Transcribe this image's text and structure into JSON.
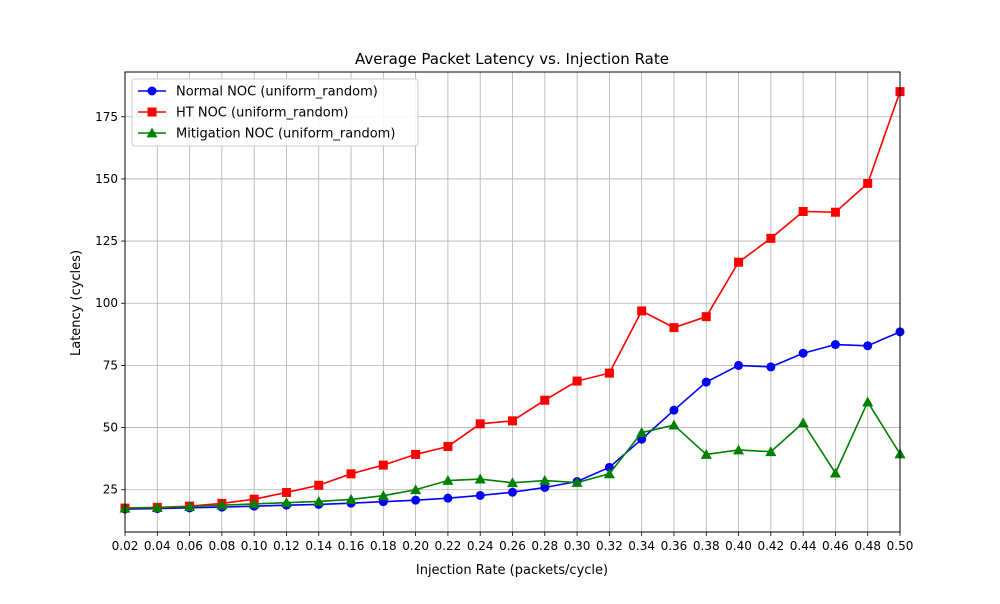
{
  "chart_data": {
    "type": "line",
    "title": "Average Packet Latency vs. Injection Rate",
    "xlabel": "Injection Rate (packets/cycle)",
    "ylabel": "Latency (cycles)",
    "xlim": [
      0.02,
      0.5
    ],
    "ylim": [
      8,
      193
    ],
    "x_ticks": [
      "0.02",
      "0.04",
      "0.06",
      "0.08",
      "0.10",
      "0.12",
      "0.14",
      "0.16",
      "0.18",
      "0.20",
      "0.22",
      "0.24",
      "0.26",
      "0.28",
      "0.30",
      "0.32",
      "0.34",
      "0.36",
      "0.38",
      "0.40",
      "0.42",
      "0.44",
      "0.46",
      "0.48",
      "0.50"
    ],
    "y_ticks": [
      "25",
      "50",
      "75",
      "100",
      "125",
      "150",
      "175"
    ],
    "grid": true,
    "legend_position": "top-left",
    "x": [
      0.02,
      0.04,
      0.06,
      0.08,
      0.1,
      0.12,
      0.14,
      0.16,
      0.18,
      0.2,
      0.22,
      0.24,
      0.26,
      0.28,
      0.3,
      0.32,
      0.34,
      0.36,
      0.38,
      0.4,
      0.42,
      0.44,
      0.46,
      0.48,
      0.5
    ],
    "series": [
      {
        "name": "Normal NOC (uniform_random)",
        "color": "#0000ff",
        "marker": "circle",
        "values": [
          17.2,
          17.4,
          17.7,
          18.0,
          18.4,
          18.8,
          19.1,
          19.6,
          20.2,
          20.8,
          21.6,
          22.7,
          24.0,
          25.9,
          28.3,
          34.0,
          45.3,
          57.0,
          68.3,
          75.0,
          74.4,
          79.9,
          83.4,
          82.9,
          88.5
        ]
      },
      {
        "name": "HT NOC (uniform_random)",
        "color": "#ff0000",
        "marker": "square",
        "values": [
          17.6,
          17.9,
          18.4,
          19.5,
          21.2,
          23.9,
          26.8,
          31.4,
          34.9,
          39.2,
          42.4,
          51.5,
          52.7,
          61.0,
          68.7,
          71.9,
          96.9,
          90.2,
          94.6,
          116.5,
          126.1,
          136.9,
          136.6,
          148.2,
          185.1
        ]
      },
      {
        "name": "Mitigation NOC (uniform_random)",
        "color": "#008000",
        "marker": "triangle",
        "values": [
          17.6,
          17.8,
          18.2,
          18.8,
          19.3,
          19.8,
          20.3,
          21.1,
          22.6,
          25.0,
          28.7,
          29.3,
          27.8,
          28.7,
          27.9,
          31.4,
          48.0,
          51.0,
          39.2,
          41.0,
          40.3,
          51.9,
          31.7,
          60.3,
          39.4
        ]
      }
    ]
  }
}
